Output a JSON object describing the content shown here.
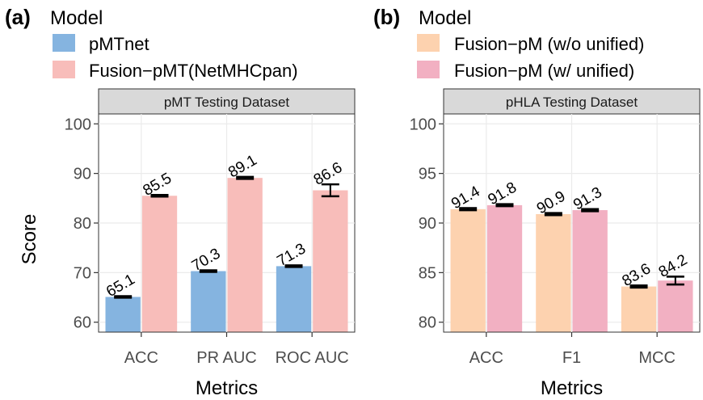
{
  "colors": {
    "pmtnet": "#85B4E0",
    "fusion_pmt": "#F8BDBA",
    "fusion_wo": "#FDD2AF",
    "fusion_w": "#F2B0C2",
    "strip_bg": "#D9D9D9",
    "grid": "#EBEBEB",
    "errorbar": "#000000"
  },
  "y_axis_title": "Score",
  "chart_data": [
    {
      "type": "bar",
      "panel_tag": "(a)",
      "legend_title": "Model",
      "strip_label": "pMT Testing Dataset",
      "xlabel": "Metrics",
      "ylabel": "Score",
      "categories": [
        "ACC",
        "PR AUC",
        "ROC AUC"
      ],
      "ylim": [
        58,
        102
      ],
      "yticks": [
        60,
        70,
        80,
        90,
        100
      ],
      "grid": true,
      "legend_position": "top-left",
      "series": [
        {
          "name": "pMTnet",
          "color": "#85B4E0",
          "values": [
            65.1,
            70.3,
            71.3
          ],
          "errors": [
            0.15,
            0.15,
            0.15
          ],
          "labels": [
            "65.1",
            "70.3",
            "71.3"
          ]
        },
        {
          "name": "Fusion−pMT(NetMHCpan)",
          "color": "#F8BDBA",
          "values": [
            85.5,
            89.1,
            86.6
          ],
          "errors": [
            0.15,
            0.2,
            1.2
          ],
          "labels": [
            "85.5",
            "89.1",
            "86.6"
          ]
        }
      ]
    },
    {
      "type": "bar",
      "panel_tag": "(b)",
      "legend_title": "Model",
      "strip_label": "pHLA Testing Dataset",
      "xlabel": "Metrics",
      "ylabel": "Score",
      "categories": [
        "ACC",
        "F1",
        "MCC"
      ],
      "ylim": [
        79,
        101
      ],
      "yticks": [
        80,
        85,
        90,
        95,
        100
      ],
      "grid": true,
      "legend_position": "top-left",
      "series": [
        {
          "name": "Fusion−pM (w/o unified)",
          "color": "#FDD2AF",
          "values": [
            91.4,
            90.9,
            83.6
          ],
          "errors": [
            0.1,
            0.1,
            0.1
          ],
          "labels": [
            "91.4",
            "90.9",
            "83.6"
          ]
        },
        {
          "name": "Fusion−pM (w/ unified)",
          "color": "#F2B0C2",
          "values": [
            91.8,
            91.3,
            84.2
          ],
          "errors": [
            0.1,
            0.1,
            0.4
          ],
          "labels": [
            "91.8",
            "91.3",
            "84.2"
          ]
        }
      ]
    }
  ]
}
